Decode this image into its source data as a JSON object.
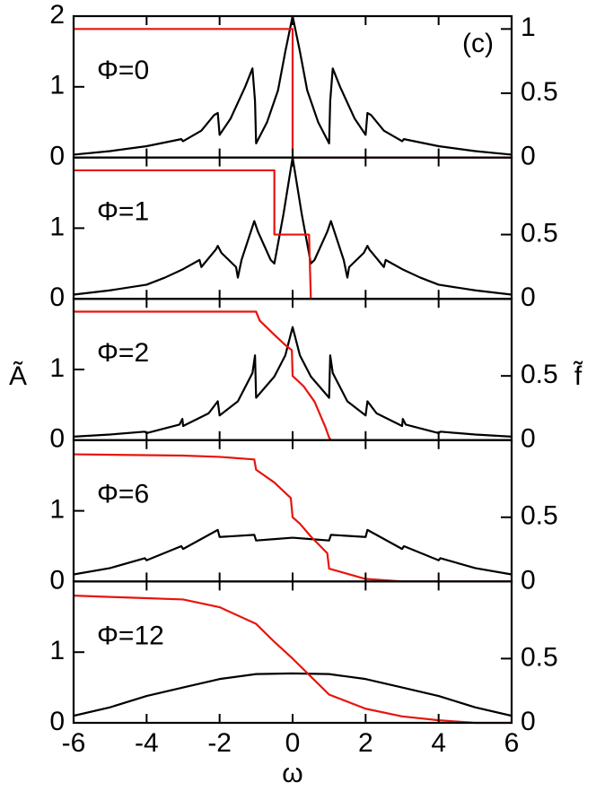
{
  "chart_data": [
    {
      "type": "line",
      "annotation": "Φ=0",
      "panel_label": "(c)",
      "xlim": [
        -6,
        6
      ],
      "ylim": [
        0,
        2
      ],
      "y2lim": [
        0,
        1.1
      ],
      "yticks": [
        0,
        1,
        2
      ],
      "y2ticks": [
        0,
        0.5,
        1
      ],
      "series": [
        {
          "color": "#000000",
          "x": [
            -6,
            -5,
            -4,
            -3.05,
            -3,
            -2.5,
            -2.15,
            -2.05,
            -2,
            -1.7,
            -1.3,
            -1.1,
            -1.03,
            -1,
            -0.7,
            -0.4,
            -0.2,
            0,
            0.2,
            0.4,
            0.7,
            1,
            1.03,
            1.1,
            1.3,
            1.7,
            2,
            2.05,
            2.15,
            2.5,
            3,
            3.05,
            4,
            5,
            6
          ],
          "values": [
            0.04,
            0.09,
            0.16,
            0.26,
            0.23,
            0.38,
            0.6,
            0.63,
            0.32,
            0.55,
            1.0,
            1.26,
            0.8,
            0.2,
            0.5,
            0.95,
            1.5,
            2.0,
            1.5,
            0.95,
            0.5,
            0.2,
            0.8,
            1.26,
            1.0,
            0.55,
            0.32,
            0.63,
            0.6,
            0.38,
            0.23,
            0.26,
            0.16,
            0.09,
            0.04
          ]
        },
        {
          "color": "#e8140c",
          "axis": "y2",
          "x": [
            -6,
            0,
            0,
            6
          ],
          "values": [
            1,
            1,
            0,
            0
          ]
        }
      ]
    },
    {
      "type": "line",
      "annotation": "Φ=1",
      "xlim": [
        -6,
        6
      ],
      "ylim": [
        0,
        2
      ],
      "y2lim": [
        0,
        1.1
      ],
      "yticks": [
        0,
        1
      ],
      "y2ticks": [
        0,
        0.5
      ],
      "series": [
        {
          "color": "#000000",
          "x": [
            -6,
            -5,
            -4,
            -3.5,
            -3,
            -2.55,
            -2.5,
            -2.1,
            -2.05,
            -1.95,
            -1.55,
            -1.5,
            -1.4,
            -1.05,
            -0.95,
            -0.6,
            -0.5,
            -0.25,
            0,
            0.25,
            0.5,
            0.6,
            0.95,
            1.05,
            1.4,
            1.5,
            1.55,
            1.95,
            2.05,
            2.1,
            2.5,
            2.55,
            3,
            3.5,
            4,
            5,
            6
          ],
          "values": [
            0.06,
            0.12,
            0.2,
            0.3,
            0.42,
            0.55,
            0.45,
            0.7,
            0.75,
            0.65,
            0.45,
            0.3,
            0.55,
            1.1,
            0.95,
            0.55,
            0.5,
            1.2,
            2.0,
            1.2,
            0.5,
            0.55,
            0.95,
            1.1,
            0.55,
            0.3,
            0.45,
            0.65,
            0.75,
            0.7,
            0.45,
            0.55,
            0.42,
            0.3,
            0.2,
            0.12,
            0.06
          ]
        },
        {
          "color": "#e8140c",
          "axis": "y2",
          "x": [
            -6,
            -0.5,
            -0.5,
            0.45,
            0.5,
            6
          ],
          "values": [
            1,
            1,
            0.5,
            0.5,
            0,
            0
          ]
        }
      ]
    },
    {
      "type": "line",
      "annotation": "Φ=2",
      "y_label": "Ã",
      "y2_label": "f̃",
      "xlim": [
        -6,
        6
      ],
      "ylim": [
        0,
        2
      ],
      "y2lim": [
        0,
        1.1
      ],
      "yticks": [
        0,
        1
      ],
      "y2ticks": [
        0,
        0.5
      ],
      "series": [
        {
          "color": "#000000",
          "x": [
            -6,
            -5,
            -4.05,
            -4,
            -3.1,
            -3.02,
            -3,
            -2.3,
            -2.05,
            -2,
            -1.5,
            -1.1,
            -1.03,
            -1,
            -0.5,
            -0.2,
            0,
            0.2,
            0.5,
            1,
            1.03,
            1.1,
            1.5,
            2,
            2.05,
            2.3,
            3,
            3.02,
            3.1,
            4,
            4.05,
            5,
            6
          ],
          "values": [
            0.05,
            0.08,
            0.12,
            0.1,
            0.22,
            0.3,
            0.2,
            0.38,
            0.55,
            0.35,
            0.55,
            0.95,
            1.2,
            0.6,
            0.9,
            1.2,
            1.6,
            1.2,
            0.9,
            0.6,
            1.2,
            0.95,
            0.55,
            0.35,
            0.55,
            0.38,
            0.2,
            0.3,
            0.22,
            0.1,
            0.12,
            0.08,
            0.05
          ]
        },
        {
          "color": "#e8140c",
          "axis": "y2",
          "x": [
            -6,
            -1,
            -0.9,
            -0.5,
            -0.2,
            -0.02,
            0,
            0.3,
            0.6,
            0.9,
            1,
            1.05,
            6
          ],
          "values": [
            1,
            1,
            0.93,
            0.82,
            0.74,
            0.7,
            0.5,
            0.42,
            0.3,
            0.1,
            0.02,
            0,
            0
          ]
        }
      ]
    },
    {
      "type": "line",
      "annotation": "Φ=6",
      "xlim": [
        -6,
        6
      ],
      "ylim": [
        0,
        2
      ],
      "y2lim": [
        0,
        1.1
      ],
      "yticks": [
        0,
        1
      ],
      "y2ticks": [
        0,
        0.5
      ],
      "series": [
        {
          "color": "#000000",
          "x": [
            -6,
            -5,
            -4.05,
            -4,
            -3.05,
            -3,
            -2.05,
            -2,
            -1.05,
            -1,
            -0.5,
            0,
            0.5,
            1,
            1.05,
            2,
            2.05,
            3,
            3.05,
            4,
            4.05,
            5,
            6
          ],
          "values": [
            0.1,
            0.19,
            0.33,
            0.3,
            0.5,
            0.46,
            0.73,
            0.63,
            0.66,
            0.58,
            0.6,
            0.62,
            0.6,
            0.58,
            0.66,
            0.63,
            0.73,
            0.46,
            0.5,
            0.3,
            0.33,
            0.19,
            0.1
          ]
        },
        {
          "color": "#e8140c",
          "axis": "y2",
          "x": [
            -6,
            -3,
            -2,
            -1.05,
            -1,
            -0.5,
            -0.05,
            0,
            0.2,
            0.5,
            0.95,
            1,
            1.5,
            2,
            3,
            6
          ],
          "values": [
            0.99,
            0.98,
            0.97,
            0.95,
            0.87,
            0.77,
            0.65,
            0.5,
            0.45,
            0.35,
            0.22,
            0.1,
            0.06,
            0.02,
            0,
            0
          ]
        }
      ]
    },
    {
      "type": "line",
      "annotation": "Φ=12",
      "x_label": "ω",
      "xlim": [
        -6,
        6
      ],
      "ylim": [
        0,
        2
      ],
      "y2lim": [
        0,
        1.1
      ],
      "yticks": [
        0,
        1
      ],
      "y2ticks": [
        0,
        0.5
      ],
      "xticks": [
        -6,
        -4,
        -2,
        0,
        2,
        4,
        6
      ],
      "series": [
        {
          "color": "#000000",
          "x": [
            -6,
            -5,
            -4,
            -3,
            -2,
            -1,
            0,
            1,
            2,
            3,
            4,
            5,
            6
          ],
          "values": [
            0.1,
            0.22,
            0.38,
            0.5,
            0.62,
            0.69,
            0.7,
            0.69,
            0.62,
            0.5,
            0.38,
            0.22,
            0.1
          ]
        },
        {
          "color": "#e8140c",
          "axis": "y2",
          "x": [
            -6,
            -5,
            -4,
            -3,
            -2,
            -1,
            -0.5,
            0,
            0.5,
            1,
            2,
            3,
            4,
            5,
            6
          ],
          "values": [
            0.99,
            0.98,
            0.97,
            0.96,
            0.9,
            0.77,
            0.63,
            0.5,
            0.36,
            0.22,
            0.11,
            0.05,
            0.02,
            0,
            0
          ]
        }
      ]
    }
  ]
}
